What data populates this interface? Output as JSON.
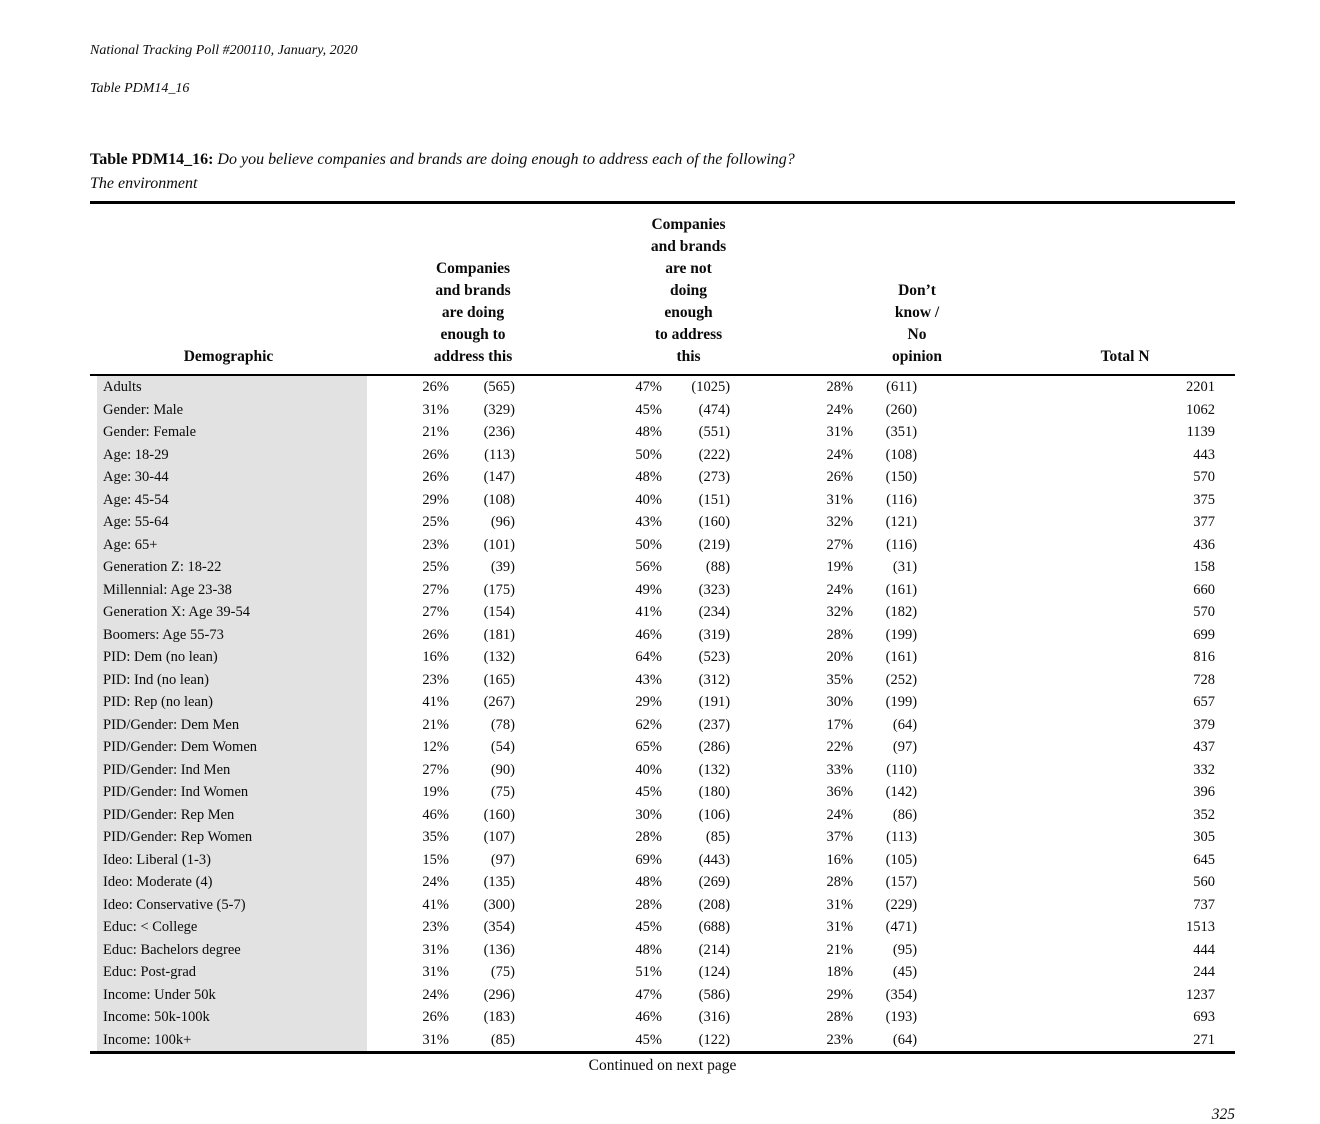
{
  "colors": {
    "demographic_band": "#e2e2e2",
    "rule": "#000000"
  },
  "doc": {
    "header_line1": "National Tracking Poll #200110, January, 2020",
    "header_line2": "Table PDM14_16",
    "title_bold": "Table PDM14_16:",
    "title_question": " Do you believe companies and brands are doing enough to address each of the following?",
    "title_subject": "The environment",
    "continued_note": "Continued on next page",
    "page_number": "325"
  },
  "table": {
    "headers": {
      "demographic": "Demographic",
      "doing_enough": "Companies and brands\nare doing enough to\naddress this",
      "not_doing_enough": "Companies and brands\nare not doing enough\nto address this",
      "dont_know": "Don’t know / No\nopinion",
      "total_n": "Total N"
    },
    "rows": [
      {
        "demographic": "Adults",
        "pct1": "26%",
        "n1": "(565)",
        "pct2": "47%",
        "n2": "(1025)",
        "pct3": "28%",
        "n3": "(611)",
        "total": "2201"
      },
      {
        "demographic": "Gender: Male",
        "pct1": "31%",
        "n1": "(329)",
        "pct2": "45%",
        "n2": "(474)",
        "pct3": "24%",
        "n3": "(260)",
        "total": "1062"
      },
      {
        "demographic": "Gender: Female",
        "pct1": "21%",
        "n1": "(236)",
        "pct2": "48%",
        "n2": "(551)",
        "pct3": "31%",
        "n3": "(351)",
        "total": "1139"
      },
      {
        "demographic": "Age: 18-29",
        "pct1": "26%",
        "n1": "(113)",
        "pct2": "50%",
        "n2": "(222)",
        "pct3": "24%",
        "n3": "(108)",
        "total": "443"
      },
      {
        "demographic": "Age: 30-44",
        "pct1": "26%",
        "n1": "(147)",
        "pct2": "48%",
        "n2": "(273)",
        "pct3": "26%",
        "n3": "(150)",
        "total": "570"
      },
      {
        "demographic": "Age: 45-54",
        "pct1": "29%",
        "n1": "(108)",
        "pct2": "40%",
        "n2": "(151)",
        "pct3": "31%",
        "n3": "(116)",
        "total": "375"
      },
      {
        "demographic": "Age: 55-64",
        "pct1": "25%",
        "n1": "(96)",
        "pct2": "43%",
        "n2": "(160)",
        "pct3": "32%",
        "n3": "(121)",
        "total": "377"
      },
      {
        "demographic": "Age: 65+",
        "pct1": "23%",
        "n1": "(101)",
        "pct2": "50%",
        "n2": "(219)",
        "pct3": "27%",
        "n3": "(116)",
        "total": "436"
      },
      {
        "demographic": "Generation Z: 18-22",
        "pct1": "25%",
        "n1": "(39)",
        "pct2": "56%",
        "n2": "(88)",
        "pct3": "19%",
        "n3": "(31)",
        "total": "158"
      },
      {
        "demographic": "Millennial: Age 23-38",
        "pct1": "27%",
        "n1": "(175)",
        "pct2": "49%",
        "n2": "(323)",
        "pct3": "24%",
        "n3": "(161)",
        "total": "660"
      },
      {
        "demographic": "Generation X: Age 39-54",
        "pct1": "27%",
        "n1": "(154)",
        "pct2": "41%",
        "n2": "(234)",
        "pct3": "32%",
        "n3": "(182)",
        "total": "570"
      },
      {
        "demographic": "Boomers: Age 55-73",
        "pct1": "26%",
        "n1": "(181)",
        "pct2": "46%",
        "n2": "(319)",
        "pct3": "28%",
        "n3": "(199)",
        "total": "699"
      },
      {
        "demographic": "PID: Dem (no lean)",
        "pct1": "16%",
        "n1": "(132)",
        "pct2": "64%",
        "n2": "(523)",
        "pct3": "20%",
        "n3": "(161)",
        "total": "816"
      },
      {
        "demographic": "PID: Ind (no lean)",
        "pct1": "23%",
        "n1": "(165)",
        "pct2": "43%",
        "n2": "(312)",
        "pct3": "35%",
        "n3": "(252)",
        "total": "728"
      },
      {
        "demographic": "PID: Rep (no lean)",
        "pct1": "41%",
        "n1": "(267)",
        "pct2": "29%",
        "n2": "(191)",
        "pct3": "30%",
        "n3": "(199)",
        "total": "657"
      },
      {
        "demographic": "PID/Gender: Dem Men",
        "pct1": "21%",
        "n1": "(78)",
        "pct2": "62%",
        "n2": "(237)",
        "pct3": "17%",
        "n3": "(64)",
        "total": "379"
      },
      {
        "demographic": "PID/Gender: Dem Women",
        "pct1": "12%",
        "n1": "(54)",
        "pct2": "65%",
        "n2": "(286)",
        "pct3": "22%",
        "n3": "(97)",
        "total": "437"
      },
      {
        "demographic": "PID/Gender: Ind Men",
        "pct1": "27%",
        "n1": "(90)",
        "pct2": "40%",
        "n2": "(132)",
        "pct3": "33%",
        "n3": "(110)",
        "total": "332"
      },
      {
        "demographic": "PID/Gender: Ind Women",
        "pct1": "19%",
        "n1": "(75)",
        "pct2": "45%",
        "n2": "(180)",
        "pct3": "36%",
        "n3": "(142)",
        "total": "396"
      },
      {
        "demographic": "PID/Gender: Rep Men",
        "pct1": "46%",
        "n1": "(160)",
        "pct2": "30%",
        "n2": "(106)",
        "pct3": "24%",
        "n3": "(86)",
        "total": "352"
      },
      {
        "demographic": "PID/Gender: Rep Women",
        "pct1": "35%",
        "n1": "(107)",
        "pct2": "28%",
        "n2": "(85)",
        "pct3": "37%",
        "n3": "(113)",
        "total": "305"
      },
      {
        "demographic": "Ideo: Liberal (1-3)",
        "pct1": "15%",
        "n1": "(97)",
        "pct2": "69%",
        "n2": "(443)",
        "pct3": "16%",
        "n3": "(105)",
        "total": "645"
      },
      {
        "demographic": "Ideo: Moderate (4)",
        "pct1": "24%",
        "n1": "(135)",
        "pct2": "48%",
        "n2": "(269)",
        "pct3": "28%",
        "n3": "(157)",
        "total": "560"
      },
      {
        "demographic": "Ideo: Conservative (5-7)",
        "pct1": "41%",
        "n1": "(300)",
        "pct2": "28%",
        "n2": "(208)",
        "pct3": "31%",
        "n3": "(229)",
        "total": "737"
      },
      {
        "demographic": "Educ: < College",
        "pct1": "23%",
        "n1": "(354)",
        "pct2": "45%",
        "n2": "(688)",
        "pct3": "31%",
        "n3": "(471)",
        "total": "1513"
      },
      {
        "demographic": "Educ: Bachelors degree",
        "pct1": "31%",
        "n1": "(136)",
        "pct2": "48%",
        "n2": "(214)",
        "pct3": "21%",
        "n3": "(95)",
        "total": "444"
      },
      {
        "demographic": "Educ: Post-grad",
        "pct1": "31%",
        "n1": "(75)",
        "pct2": "51%",
        "n2": "(124)",
        "pct3": "18%",
        "n3": "(45)",
        "total": "244"
      },
      {
        "demographic": "Income: Under 50k",
        "pct1": "24%",
        "n1": "(296)",
        "pct2": "47%",
        "n2": "(586)",
        "pct3": "29%",
        "n3": "(354)",
        "total": "1237"
      },
      {
        "demographic": "Income: 50k-100k",
        "pct1": "26%",
        "n1": "(183)",
        "pct2": "46%",
        "n2": "(316)",
        "pct3": "28%",
        "n3": "(193)",
        "total": "693"
      },
      {
        "demographic": "Income: 100k+",
        "pct1": "31%",
        "n1": "(85)",
        "pct2": "45%",
        "n2": "(122)",
        "pct3": "23%",
        "n3": "(64)",
        "total": "271"
      }
    ]
  }
}
